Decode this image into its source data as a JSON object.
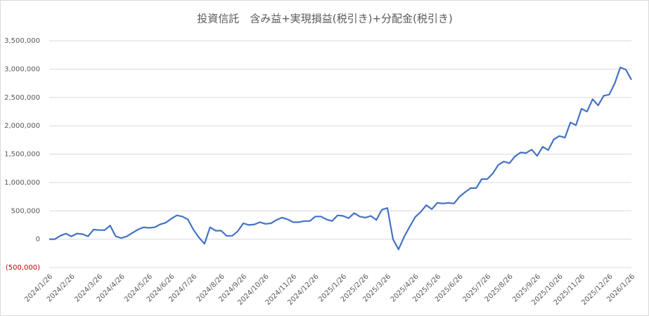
{
  "chart_data": {
    "type": "line",
    "title": "投資信託　含み益+実現損益(税引き)+分配金(税引き)",
    "categories": [
      "2024/1/26",
      null,
      null,
      null,
      "2024/2/26",
      null,
      null,
      null,
      null,
      "2024/3/26",
      null,
      null,
      null,
      "2024/4/26",
      null,
      null,
      null,
      null,
      "2024/5/26",
      null,
      null,
      null,
      "2024/6/26",
      null,
      null,
      null,
      "2024/7/26",
      null,
      null,
      null,
      null,
      "2024/8/26",
      null,
      null,
      null,
      "2024/9/26",
      null,
      null,
      null,
      "2024/10/26",
      null,
      null,
      null,
      null,
      "2024/11/26",
      null,
      null,
      null,
      "2024/12/26",
      null,
      null,
      null,
      null,
      "2025/1/26",
      null,
      null,
      null,
      "2025/2/26",
      null,
      null,
      null,
      "2025/3/26",
      null,
      null,
      null,
      null,
      "2025/4/26",
      null,
      null,
      null,
      "2025/5/26",
      null,
      null,
      null,
      "2025/6/26",
      null,
      null,
      null,
      null,
      "2025/7/26",
      null,
      null,
      null,
      "2025/8/26",
      null,
      null,
      null,
      null,
      "2025/9/26",
      null,
      null,
      null,
      "2025/10/26",
      null,
      null,
      null,
      "2025/11/26",
      null,
      null,
      null,
      null,
      "2025/12/26",
      null,
      null,
      null,
      "2026/1/26"
    ],
    "values": [
      0,
      0,
      60000,
      100000,
      50000,
      100000,
      90000,
      50000,
      170000,
      160000,
      160000,
      240000,
      50000,
      20000,
      50000,
      110000,
      170000,
      210000,
      200000,
      210000,
      260000,
      290000,
      360000,
      420000,
      400000,
      350000,
      170000,
      30000,
      -80000,
      210000,
      150000,
      150000,
      60000,
      60000,
      140000,
      280000,
      250000,
      260000,
      300000,
      270000,
      280000,
      340000,
      380000,
      350000,
      300000,
      300000,
      320000,
      320000,
      400000,
      400000,
      350000,
      320000,
      420000,
      410000,
      370000,
      460000,
      400000,
      380000,
      410000,
      340000,
      520000,
      550000,
      0,
      -180000,
      40000,
      220000,
      390000,
      480000,
      600000,
      530000,
      640000,
      630000,
      640000,
      630000,
      750000,
      830000,
      900000,
      900000,
      1060000,
      1060000,
      1160000,
      1310000,
      1370000,
      1340000,
      1460000,
      1530000,
      1520000,
      1580000,
      1470000,
      1630000,
      1570000,
      1760000,
      1820000,
      1790000,
      2060000,
      2010000,
      2300000,
      2250000,
      2470000,
      2360000,
      2530000,
      2550000,
      2750000,
      3030000,
      2990000,
      2810000
    ],
    "color": "#4472c4",
    "ylim": [
      -500000,
      3500000
    ],
    "yticks": [
      {
        "value": -500000,
        "label": "(500,000)"
      },
      0,
      {
        "value": 500000,
        "label": "500,000"
      },
      {
        "value": 1000000,
        "label": "1,000,000"
      },
      {
        "value": 1500000,
        "label": "1,500,000"
      },
      {
        "value": 2000000,
        "label": "2,000,000"
      },
      {
        "value": 2500000,
        "label": "2,500,000"
      },
      {
        "value": 3000000,
        "label": "3,000,000"
      },
      {
        "value": 3500000,
        "label": "3,500,000"
      }
    ],
    "negative_tick_color": "#c00000",
    "grid": true
  }
}
